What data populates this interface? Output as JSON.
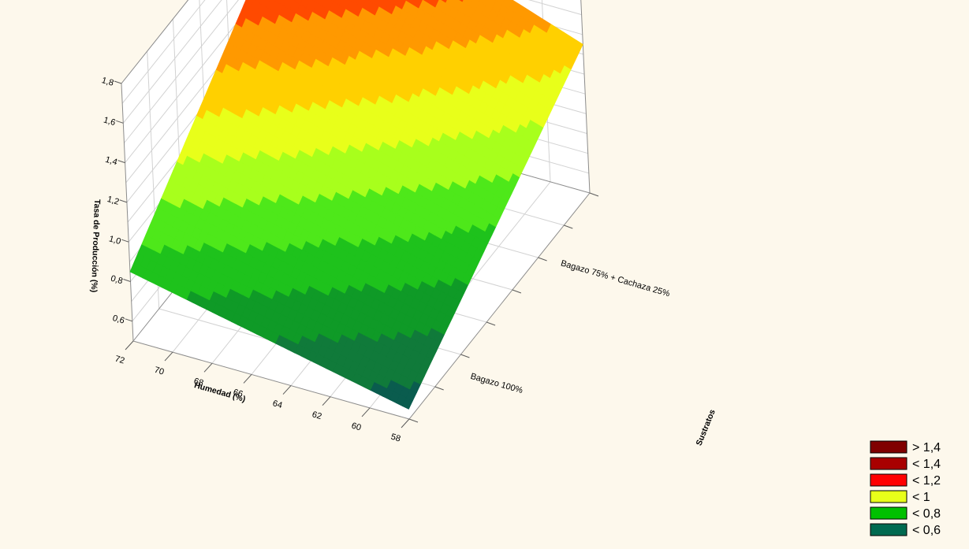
{
  "chart_data": {
    "type": "surface3d",
    "title": "",
    "x_axis": {
      "label": "Humedad (%)",
      "ticks": [
        "72",
        "70",
        "68",
        "66",
        "64",
        "62",
        "60",
        "58"
      ],
      "range": [
        58,
        72
      ]
    },
    "y_axis": {
      "label": "Sustratos",
      "ticks": [
        "Bagazo 100%",
        "Bagazo 75% + Cachaza 25%"
      ]
    },
    "z_axis": {
      "label": "Tasa de Producción (%)",
      "ticks": [
        "0,6",
        "0,8",
        "1,0",
        "1,2",
        "1,4",
        "1,6",
        "1,8"
      ],
      "range": [
        0.5,
        1.8
      ]
    },
    "surface_corners": [
      {
        "humedad": 58,
        "sustrato": "Bagazo 100%",
        "tasa": 0.55
      },
      {
        "humedad": 72,
        "sustrato": "Bagazo 100%",
        "tasa": 0.85
      },
      {
        "humedad": 58,
        "sustrato": "Bagazo 75% + Cachaza 25%",
        "tasa": 1.25
      },
      {
        "humedad": 72,
        "sustrato": "Bagazo 75% + Cachaza 25%",
        "tasa": 1.75
      }
    ],
    "contour_levels": [
      0.6,
      0.7,
      0.8,
      0.9,
      1.0,
      1.1,
      1.2,
      1.3,
      1.4,
      1.5,
      1.6
    ],
    "band_colors": [
      "#0a5c4e",
      "#107a3a",
      "#0f9a27",
      "#1ec21c",
      "#4ee81a",
      "#a8ff1c",
      "#e8ff1a",
      "#ffd000",
      "#ff9900",
      "#ff4a00",
      "#ff0000",
      "#c40000",
      "#8a0000"
    ],
    "grid": true,
    "legend": {
      "placement": "bottom-right",
      "entries": [
        {
          "label": "> 1,4",
          "color": "#800000"
        },
        {
          "label": "< 1,4",
          "color": "#a80000"
        },
        {
          "label": "< 1,2",
          "color": "#ff0000"
        },
        {
          "label": "< 1",
          "color": "#e8ff1a"
        },
        {
          "label": "< 0,8",
          "color": "#00c000"
        },
        {
          "label": "< 0,6",
          "color": "#006a50"
        }
      ]
    }
  }
}
